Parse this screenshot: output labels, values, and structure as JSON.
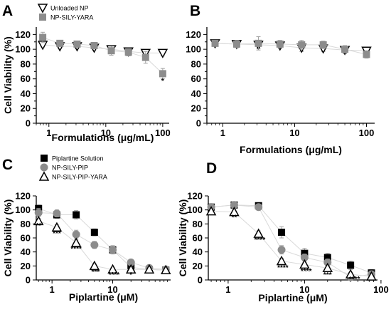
{
  "colors": {
    "black": "#000000",
    "gray": "#8c8c8c",
    "light_gray": "#d9d9d9",
    "white": "#ffffff"
  },
  "chart_data": [
    {
      "panel": "A",
      "type": "line",
      "xscale": "log",
      "xlim": [
        0.6,
        130
      ],
      "ylim": [
        0,
        130
      ],
      "xticks": [
        1,
        10,
        100
      ],
      "xticklabels": [
        "1",
        "10",
        "100"
      ],
      "yticks": [
        0,
        10,
        20,
        30,
        40,
        50,
        60,
        70,
        80,
        90,
        100,
        110,
        120
      ],
      "yticklabels": [
        "0",
        "",
        "20",
        "",
        "40",
        "",
        "60",
        "",
        "80",
        "",
        "100",
        "",
        "120"
      ],
      "ylabel": "Cell Viability (%)",
      "xlabel": "Formulations (μg/mL)",
      "legend_position": "top-left",
      "series": [
        {
          "name": "Unloaded NP",
          "marker": "triangle-down-open",
          "color": "#000000",
          "x": [
            0.78,
            1.56,
            3.13,
            6.25,
            12.5,
            25,
            50,
            100
          ],
          "y": [
            106,
            104,
            104,
            102,
            100,
            97,
            95,
            95
          ],
          "err": [
            3,
            3,
            3,
            4,
            4,
            4,
            4,
            4
          ]
        },
        {
          "name": "NP-SILY-YARA",
          "marker": "square",
          "color": "#8c8c8c",
          "x": [
            0.78,
            1.56,
            3.13,
            6.25,
            12.5,
            25,
            50,
            100
          ],
          "y": [
            116,
            108,
            107,
            105,
            98,
            96,
            89,
            67
          ],
          "err": [
            7,
            3,
            4,
            4,
            6,
            5,
            8,
            7
          ]
        }
      ],
      "annotations": [
        {
          "x": 100,
          "y": 54,
          "text": "*"
        }
      ]
    },
    {
      "panel": "B",
      "type": "line",
      "xscale": "log",
      "xlim": [
        0.6,
        130
      ],
      "ylim": [
        0,
        130
      ],
      "xticks": [
        1,
        10,
        100
      ],
      "xticklabels": [
        "1",
        "10",
        "100"
      ],
      "yticks": [
        0,
        10,
        20,
        30,
        40,
        50,
        60,
        70,
        80,
        90,
        100,
        110,
        120
      ],
      "yticklabels": [
        "0",
        "",
        "20",
        "",
        "40",
        "",
        "60",
        "",
        "80",
        "",
        "100",
        "",
        "120"
      ],
      "xlabel": "Formulations (μg/mL)",
      "series": [
        {
          "marker": "triangle-down-open",
          "color": "#000000",
          "x": [
            0.78,
            1.56,
            3.13,
            6.25,
            12.5,
            25,
            50,
            100
          ],
          "y": [
            108,
            107,
            106,
            105,
            102,
            101,
            99,
            98
          ],
          "err": [
            3,
            3,
            5,
            4,
            5,
            4,
            5,
            4
          ]
        },
        {
          "marker": "square",
          "color": "#8c8c8c",
          "x": [
            0.78,
            1.56,
            3.13,
            6.25,
            12.5,
            25,
            50,
            100
          ],
          "y": [
            108,
            107,
            108,
            107,
            106,
            106,
            100,
            93
          ],
          "err": [
            4,
            5,
            9,
            5,
            6,
            5,
            5,
            5
          ]
        }
      ],
      "annotations": []
    },
    {
      "panel": "C",
      "type": "line",
      "xscale": "log",
      "xlim": [
        0.55,
        90
      ],
      "ylim": [
        0,
        120
      ],
      "xticks": [
        1,
        10
      ],
      "xticklabels": [
        "1",
        "10"
      ],
      "yticks": [
        0,
        20,
        40,
        60,
        80,
        100,
        120
      ],
      "yticklabels": [
        "0",
        "20",
        "40",
        "60",
        "80",
        "100",
        "120"
      ],
      "ylabel": "Cell Viability (%)",
      "xlabel": "Piplartine (μM)",
      "legend_position": "top-left",
      "series": [
        {
          "name": "Piplartine Solution",
          "marker": "square",
          "color": "#000000",
          "x": [
            0.6,
            1.2,
            2.5,
            5,
            10,
            20,
            40,
            75
          ],
          "y": [
            102,
            93,
            93,
            68,
            43,
            18,
            15,
            14
          ],
          "err": [
            5,
            5,
            6,
            5,
            6,
            4,
            3,
            3
          ]
        },
        {
          "name": "NP-SILY-PIP",
          "marker": "circle",
          "color": "#8c8c8c",
          "x": [
            0.6,
            1.2,
            2.5,
            5,
            10,
            20,
            40,
            75
          ],
          "y": [
            96,
            95,
            65,
            50,
            43,
            25,
            17,
            15
          ],
          "err": [
            6,
            5,
            6,
            5,
            5,
            4,
            3,
            3
          ]
        },
        {
          "name": "NP-SILY-PIP-YARA",
          "marker": "triangle-up-open",
          "color": "#000000",
          "x": [
            0.6,
            1.2,
            2.5,
            5,
            10,
            20,
            40,
            75
          ],
          "y": [
            84,
            75,
            53,
            20,
            15,
            15,
            15,
            14
          ],
          "err": [
            4,
            4,
            4,
            3,
            3,
            3,
            3,
            3
          ]
        }
      ],
      "annotations": [
        {
          "x": 0.6,
          "y": 74,
          "text": "**"
        },
        {
          "x": 1.2,
          "y": 63,
          "text": "***"
        },
        {
          "x": 2.5,
          "y": 41,
          "text": "****"
        },
        {
          "x": 5.2,
          "y": 8,
          "text": "***"
        },
        {
          "x": 10.5,
          "y": 4,
          "text": "****"
        },
        {
          "x": 20,
          "y": 4,
          "text": "*"
        }
      ]
    },
    {
      "panel": "D",
      "type": "line",
      "xscale": "log",
      "xlim": [
        0.55,
        90
      ],
      "ylim": [
        0,
        120
      ],
      "xticks": [
        1,
        10,
        100
      ],
      "xticklabels": [
        "1",
        "10",
        "100"
      ],
      "yticks": [
        0,
        20,
        40,
        60,
        80,
        100,
        120
      ],
      "yticklabels": [
        "0",
        "20",
        "40",
        "60",
        "80",
        "100",
        "120"
      ],
      "ylabel": "Cell Viability (%)",
      "xlabel": "Piplartine (μM)",
      "series": [
        {
          "marker": "square",
          "color": "#000000",
          "x": [
            0.6,
            1.2,
            2.5,
            5,
            10,
            20,
            40,
            75
          ],
          "y": [
            104,
            107,
            106,
            68,
            38,
            32,
            21,
            10
          ],
          "err": [
            5,
            3,
            3,
            8,
            7,
            6,
            6,
            5
          ]
        },
        {
          "marker": "circle",
          "color": "#8c8c8c",
          "x": [
            0.6,
            1.2,
            2.5,
            5,
            10,
            20,
            40,
            75
          ],
          "y": [
            104,
            107,
            104,
            43,
            32,
            25,
            4,
            8
          ],
          "err": [
            5,
            3,
            4,
            6,
            5,
            5,
            3,
            5
          ]
        },
        {
          "marker": "triangle-up-open",
          "color": "#000000",
          "x": [
            0.6,
            1.2,
            2.5,
            5,
            10,
            20,
            40,
            75
          ],
          "y": [
            98,
            97,
            66,
            27,
            22,
            17,
            8,
            5
          ],
          "err": [
            5,
            4,
            4,
            4,
            3,
            3,
            3,
            3
          ]
        }
      ],
      "annotations": [
        {
          "x": 1.2,
          "y": 86,
          "text": "**"
        },
        {
          "x": 2.6,
          "y": 54,
          "text": "****"
        },
        {
          "x": 5.2,
          "y": 14,
          "text": "****"
        },
        {
          "x": 10.5,
          "y": 9,
          "text": "****"
        },
        {
          "x": 20,
          "y": 4,
          "text": "***"
        },
        {
          "x": 45,
          "y": -2,
          "text": "****"
        }
      ]
    }
  ]
}
